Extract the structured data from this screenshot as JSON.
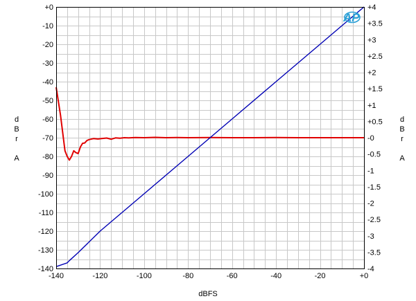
{
  "chart_data": {
    "type": "line",
    "title": "",
    "xlabel": "dBFS",
    "ylabel_left": [
      "d",
      "B",
      "r",
      "",
      "A"
    ],
    "ylabel_right": [
      "d",
      "B",
      "r",
      "",
      "A"
    ],
    "xlim": [
      -140,
      0
    ],
    "ylim_left": [
      -140,
      0
    ],
    "ylim_right": [
      -4,
      4
    ],
    "x_ticks": [
      "-140",
      "-120",
      "-100",
      "-80",
      "-60",
      "-40",
      "-20",
      "+0"
    ],
    "y_ticks_left": [
      "+0",
      "-10",
      "-20",
      "-30",
      "-40",
      "-50",
      "-60",
      "-70",
      "-80",
      "-90",
      "-100",
      "-110",
      "-120",
      "-130",
      "-140"
    ],
    "y_ticks_right": [
      "+4",
      "+3.5",
      "+3",
      "+2.5",
      "+2",
      "+1.5",
      "+1",
      "+0.5",
      "-0",
      "-0.5",
      "-1",
      "-1.5",
      "-2",
      "-2.5",
      "-3",
      "-3.5",
      "-4"
    ],
    "grid": true,
    "logo": "AP",
    "series": [
      {
        "axis": "left",
        "color": "#e00000",
        "x": [
          -140,
          -138,
          -136,
          -135,
          -134,
          -133,
          -132,
          -131,
          -130,
          -129,
          -128,
          -127,
          -126,
          -125,
          -123,
          -121,
          -119,
          -117,
          -115,
          -113,
          -111,
          -109,
          -107,
          -104,
          -100,
          -95,
          -90,
          -85,
          -80,
          -70,
          -60,
          -50,
          -40,
          -30,
          -20,
          -10,
          0
        ],
        "y": [
          -43,
          -58,
          -77,
          -80,
          -82,
          -80,
          -77,
          -78,
          -78.5,
          -75,
          -73,
          -72.8,
          -71.5,
          -71,
          -70.5,
          -70.7,
          -70.4,
          -70.2,
          -70.8,
          -70.1,
          -70.3,
          -70,
          -70.1,
          -69.9,
          -70,
          -69.8,
          -70,
          -69.9,
          -70,
          -69.9,
          -70,
          -70,
          -69.9,
          -70,
          -70,
          -70,
          -70
        ]
      },
      {
        "axis": "left",
        "color": "#0000b4",
        "x": [
          -140,
          -135,
          -134,
          -130,
          -120,
          -100,
          -80,
          -60,
          -40,
          -20,
          0
        ],
        "y": [
          -139,
          -137,
          -135.8,
          -131.5,
          -120,
          -100,
          -80,
          -60,
          -40,
          -20,
          0
        ]
      }
    ]
  }
}
